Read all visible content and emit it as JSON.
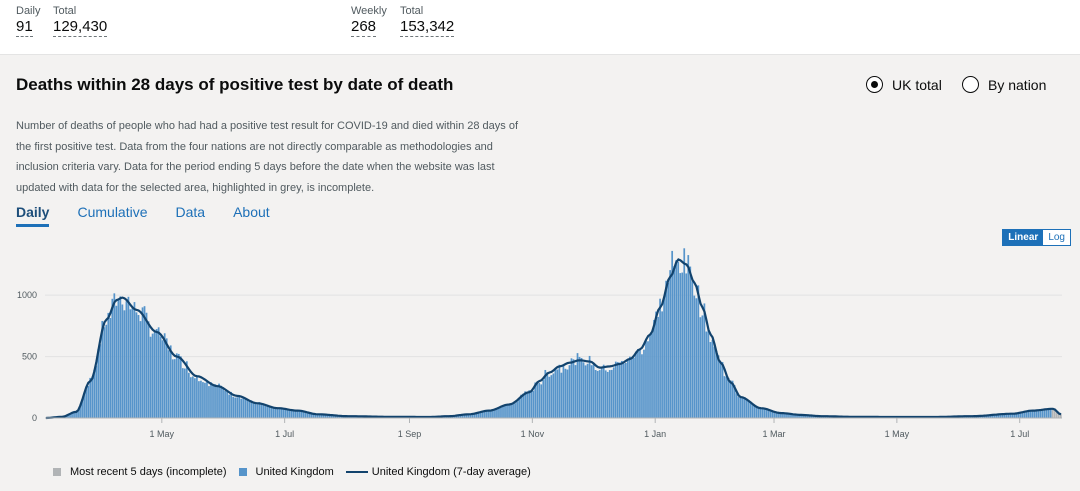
{
  "header": {
    "daily_label": "Daily",
    "daily_value": "91",
    "total1_label": "Total",
    "total1_value": "129,430",
    "weekly_label": "Weekly",
    "weekly_value": "268",
    "total2_label": "Total",
    "total2_value": "153,342"
  },
  "card": {
    "title": "Deaths within 28 days of positive test by date of death",
    "description": "Number of deaths of people who had had a positive test result for COVID-19 and died within 28 days of the first positive test. Data from the four nations are not directly comparable as methodologies and inclusion criteria vary. Data for the period ending 5 days before the date when the website was last updated with data for the selected area, highlighted in grey, is incomplete.",
    "radio_uk": "UK total",
    "radio_nation": "By nation",
    "tabs": [
      "Daily",
      "Cumulative",
      "Data",
      "About"
    ],
    "scale_linear": "Linear",
    "scale_log": "Log"
  },
  "legend": {
    "incomplete": "Most recent 5 days (incomplete)",
    "uk": "United Kingdom",
    "avg": "United Kingdom (7-day average)"
  },
  "colors": {
    "bar": "#5694ca",
    "line": "#12436d",
    "incomplete": "#b1b4b6",
    "accent": "#1d70b8"
  },
  "chart_data": {
    "type": "bar",
    "title": "Deaths within 28 days of positive test by date of death",
    "xlabel": "",
    "ylabel": "",
    "ylim": [
      0,
      1400
    ],
    "yticks": [
      0,
      500,
      1000
    ],
    "x_ticks": [
      "1 May",
      "1 Jul",
      "1 Sep",
      "1 Nov",
      "1 Jan",
      "1 Mar",
      "1 May",
      "1 Jul"
    ],
    "x_tick_days": [
      58,
      119,
      181,
      242,
      303,
      362,
      423,
      484
    ],
    "series": [
      {
        "name": "United Kingdom (7-day average)",
        "type": "line",
        "day_anchors": [
          0,
          8,
          15,
          22,
          30,
          35,
          38,
          45,
          55,
          65,
          75,
          85,
          95,
          105,
          115,
          125,
          135,
          150,
          170,
          190,
          200,
          210,
          220,
          230,
          240,
          245,
          250,
          255,
          260,
          265,
          270,
          275,
          280,
          285,
          290,
          295,
          300,
          305,
          310,
          314,
          318,
          322,
          326,
          330,
          335,
          340,
          345,
          355,
          365,
          375,
          385,
          400,
          420,
          440,
          460,
          480,
          490,
          500,
          504
        ],
        "values": [
          0,
          10,
          50,
          300,
          800,
          960,
          980,
          880,
          700,
          500,
          340,
          260,
          180,
          120,
          80,
          60,
          30,
          15,
          10,
          8,
          15,
          30,
          60,
          110,
          210,
          300,
          370,
          420,
          450,
          470,
          460,
          410,
          420,
          440,
          480,
          560,
          680,
          900,
          1150,
          1290,
          1250,
          1100,
          900,
          680,
          450,
          290,
          170,
          80,
          40,
          25,
          15,
          10,
          8,
          8,
          15,
          35,
          60,
          75,
          30
        ]
      }
    ],
    "bar_values": "daily values follow the 7-day average with noise; last 5 days shown grey (incomplete)",
    "peak_daily": 1360,
    "total_days": 505
  }
}
